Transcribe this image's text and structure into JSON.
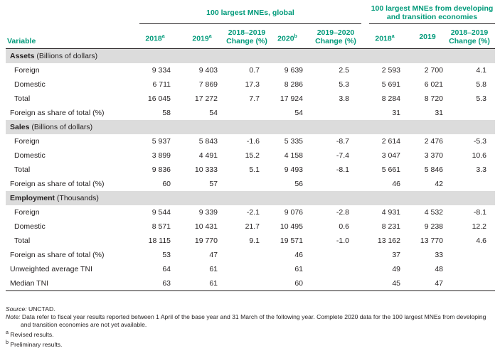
{
  "groups": {
    "global": "100 largest MNEs, global",
    "developing": "100 largest MNEs from developing and transition economies"
  },
  "headers": {
    "variable": "Variable",
    "g2018": "2018",
    "g2018_sup": "a",
    "g2019": "2019",
    "g2019_sup": "a",
    "gchg1819_line1": "2018–2019",
    "gchg1819_line2": "Change (%)",
    "g2020": "2020",
    "g2020_sup": "b",
    "gchg1920_line1": "2019–2020",
    "gchg1920_line2": "Change (%)",
    "d2018": "2018",
    "d2018_sup": "a",
    "d2019": "2019",
    "dchg1819_line1": "2018–2019",
    "dchg1819_line2": "Change (%)"
  },
  "rows": [
    {
      "type": "section",
      "label": "Assets",
      "unit": " (Billions of dollars)"
    },
    {
      "type": "data",
      "label": "Foreign",
      "values": [
        "9 334",
        "9 403",
        "0.7",
        "9 639",
        "2.5",
        "2 593",
        "2 700",
        "4.1"
      ]
    },
    {
      "type": "data",
      "label": "Domestic",
      "values": [
        "6 711",
        "7 869",
        "17.3",
        "8 286",
        "5.3",
        "5 691",
        "6 021",
        "5.8"
      ]
    },
    {
      "type": "data",
      "label": "Total",
      "values": [
        "16 045",
        "17 272",
        "7.7",
        "17 924",
        "3.8",
        "8 284",
        "8 720",
        "5.3"
      ]
    },
    {
      "type": "share",
      "label": "Foreign as share of total (%)",
      "values": [
        "58",
        "54",
        "",
        "54",
        "",
        "31",
        "31",
        ""
      ]
    },
    {
      "type": "section",
      "label": "Sales",
      "unit": " (Billions of dollars)"
    },
    {
      "type": "data",
      "label": "Foreign",
      "values": [
        "5 937",
        "5 843",
        "-1.6",
        "5 335",
        "-8.7",
        "2 614",
        "2 476",
        "-5.3"
      ]
    },
    {
      "type": "data",
      "label": "Domestic",
      "values": [
        "3 899",
        "4 491",
        "15.2",
        "4 158",
        "-7.4",
        "3 047",
        "3 370",
        "10.6"
      ]
    },
    {
      "type": "data",
      "label": "Total",
      "values": [
        "9 836",
        "10 333",
        "5.1",
        "9 493",
        "-8.1",
        "5 661",
        "5 846",
        "3.3"
      ]
    },
    {
      "type": "share",
      "label": "Foreign as share of total (%)",
      "values": [
        "60",
        "57",
        "",
        "56",
        "",
        "46",
        "42",
        ""
      ]
    },
    {
      "type": "section",
      "label": "Employment",
      "unit": " (Thousands)"
    },
    {
      "type": "data",
      "label": "Foreign",
      "values": [
        "9 544",
        "9 339",
        "-2.1",
        "9 076",
        "-2.8",
        "4 931",
        "4 532",
        "-8.1"
      ]
    },
    {
      "type": "data",
      "label": "Domestic",
      "values": [
        "8 571",
        "10 431",
        "21.7",
        "10 495",
        "0.6",
        "8 231",
        "9 238",
        "12.2"
      ]
    },
    {
      "type": "data",
      "label": "Total",
      "values": [
        "18 115",
        "19 770",
        "9.1",
        "19 571",
        "-1.0",
        "13 162",
        "13 770",
        "4.6"
      ]
    },
    {
      "type": "share",
      "label": "Foreign as share of total (%)",
      "values": [
        "53",
        "47",
        "",
        "46",
        "",
        "37",
        "33",
        ""
      ]
    },
    {
      "type": "share",
      "label": "Unweighted average TNI",
      "values": [
        "64",
        "61",
        "",
        "61",
        "",
        "49",
        "48",
        ""
      ]
    },
    {
      "type": "share",
      "label": "Median TNI",
      "values": [
        "63",
        "61",
        "",
        "60",
        "",
        "45",
        "47",
        ""
      ]
    }
  ],
  "notes": {
    "source_label": "Source:",
    "source_text": " UNCTAD.",
    "note_label": "Note:",
    "note_text": "  Data refer to fiscal year results reported between 1 April of the base year and 31 March of the following year. Complete 2020 data for the 100 largest MNEs from developing and transition economies are not yet available.",
    "fn_a_mark": "a",
    "fn_a_text": " Revised results.",
    "fn_b_mark": "b",
    "fn_b_text": " Preliminary results."
  }
}
